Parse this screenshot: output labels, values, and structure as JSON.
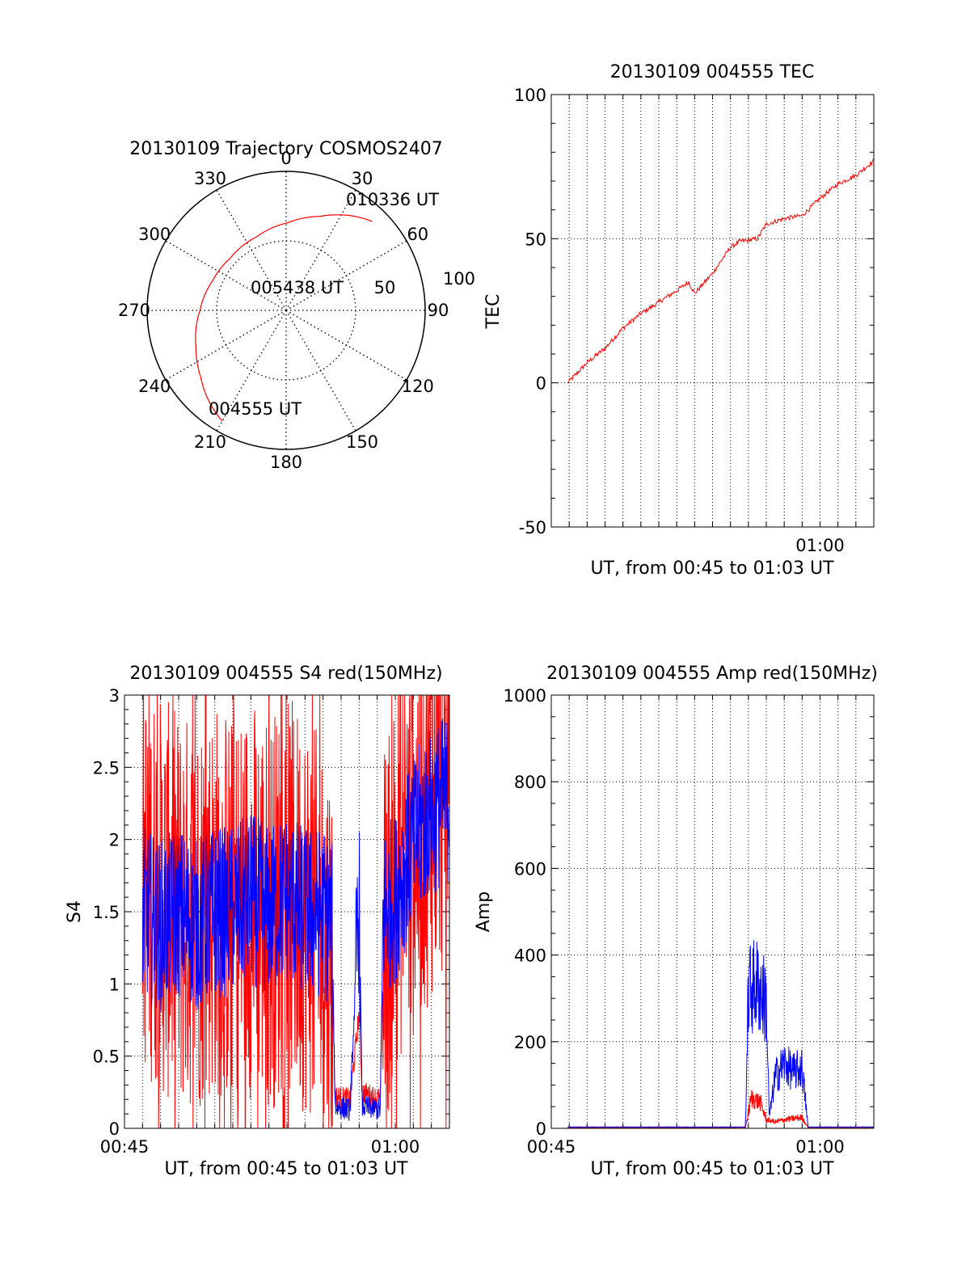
{
  "colors": {
    "red": "#ff0000",
    "blue": "#0000ff",
    "axis": "#000000",
    "grid": "#000000",
    "background": "#ffffff"
  },
  "chart_data": [
    {
      "id": "trajectory",
      "type": "polar",
      "title": "20130109 Trajectory COSMOS2407",
      "azimuth_labels": [
        "0",
        "30",
        "60",
        "90",
        "120",
        "150",
        "180",
        "210",
        "240",
        "270",
        "300",
        "330"
      ],
      "ring_labels": [
        "50",
        "100"
      ],
      "rlim": [
        0,
        100
      ],
      "grid": true,
      "track": {
        "color": "red",
        "az": [
          210,
          220,
          232,
          248,
          270,
          292,
          313,
          338,
          1,
          20,
          35,
          44
        ],
        "r": [
          92,
          86,
          78,
          70,
          62,
          57,
          55,
          57,
          63,
          72,
          83,
          89
        ]
      },
      "annotations": [
        "010336 UT",
        "005438 UT",
        "004555 UT"
      ]
    },
    {
      "id": "tec",
      "type": "line",
      "title": "20130109 004555 TEC",
      "xlabel": "UT, from 00:45 to 01:03 UT",
      "ylabel": "TEC",
      "xlim": [
        "00:45",
        "01:03"
      ],
      "ylim": [
        -50,
        100
      ],
      "yticks": [
        "-50",
        "0",
        "50",
        "100"
      ],
      "xticks": [
        "01:00"
      ],
      "grid": true,
      "series": [
        {
          "color": "red",
          "x": [
            "00:45:55",
            "00:47:00",
            "00:48:00",
            "00:49:00",
            "00:50:00",
            "00:51:00",
            "00:52:00",
            "00:52:40",
            "00:53:00",
            "00:54:00",
            "00:55:00",
            "00:55:30",
            "00:56:30",
            "00:57:00",
            "00:58:00",
            "00:59:00",
            "01:00:00",
            "01:01:00",
            "01:02:00",
            "01:03:00"
          ],
          "y": [
            0,
            7,
            12,
            19,
            24,
            28,
            32,
            35,
            31,
            38,
            47,
            49,
            50,
            55,
            57,
            58,
            64,
            69,
            72,
            77
          ]
        }
      ]
    },
    {
      "id": "s4",
      "type": "line",
      "title": "20130109 004555 S4 red(150MHz)",
      "xlabel": "UT, from 00:45 to 01:03 UT",
      "ylabel": "S4",
      "xlim": [
        "00:45",
        "01:03"
      ],
      "ylim": [
        0,
        3
      ],
      "yticks": [
        "0",
        "0.5",
        "1",
        "1.5",
        "2",
        "2.5",
        "3"
      ],
      "xticks": [
        "00:45",
        "01:00"
      ],
      "grid": true,
      "series": [
        {
          "color": "red",
          "style": "noisy",
          "x": [
            "00:46:00",
            "00:47:00",
            "00:48:00",
            "00:49:00",
            "00:50:00",
            "00:51:00",
            "00:52:00",
            "00:53:00",
            "00:54:00",
            "00:55:00",
            "00:56:00",
            "00:56:30",
            "00:56:40",
            "00:57:30",
            "00:58:00",
            "00:58:10",
            "00:59:10",
            "00:59:20",
            "01:00:00",
            "01:00:30",
            "01:01:00",
            "01:02:00",
            "01:03:00"
          ],
          "y": [
            1.8,
            1.6,
            1.5,
            1.5,
            1.6,
            1.5,
            1.6,
            1.5,
            1.6,
            1.5,
            1.3,
            1.2,
            0.22,
            0.2,
            0.8,
            0.25,
            0.2,
            1.2,
            1.8,
            1.9,
            2.0,
            2.3,
            2.5
          ]
        },
        {
          "color": "blue",
          "style": "noisy",
          "x": [
            "00:46:00",
            "00:47:00",
            "00:48:00",
            "00:49:00",
            "00:50:00",
            "00:51:00",
            "00:52:00",
            "00:53:00",
            "00:54:00",
            "00:55:00",
            "00:56:00",
            "00:56:30",
            "00:56:40",
            "00:57:30",
            "00:58:00",
            "00:58:10",
            "00:59:10",
            "00:59:20",
            "01:00:00",
            "01:00:30",
            "01:01:00",
            "01:02:00",
            "01:03:00"
          ],
          "y": [
            1.5,
            1.4,
            1.5,
            1.4,
            1.5,
            1.5,
            1.6,
            1.5,
            1.6,
            1.5,
            1.5,
            1.4,
            0.15,
            0.13,
            1.6,
            0.15,
            0.13,
            1.5,
            1.6,
            1.8,
            2.0,
            2.2,
            2.3
          ]
        }
      ]
    },
    {
      "id": "amp",
      "type": "line",
      "title": "20130109 004555 Amp red(150MHz)",
      "xlabel": "UT, from 00:45 to 01:03 UT",
      "ylabel": "Amp",
      "xlim": [
        "00:45",
        "01:03"
      ],
      "ylim": [
        0,
        1000
      ],
      "yticks": [
        "0",
        "200",
        "400",
        "600",
        "800",
        "1000"
      ],
      "xticks": [
        "00:45",
        "01:00"
      ],
      "grid": true,
      "series": [
        {
          "color": "red",
          "style": "noisy",
          "x": [
            "00:45:55",
            "00:55:50",
            "00:56:10",
            "00:56:40",
            "00:57:00",
            "00:57:30",
            "00:58:00",
            "00:59:00",
            "00:59:20",
            "01:03:00"
          ],
          "y": [
            2,
            2,
            70,
            60,
            20,
            15,
            20,
            25,
            2,
            2
          ]
        },
        {
          "color": "blue",
          "style": "noisy",
          "x": [
            "00:45:55",
            "00:55:50",
            "00:56:00",
            "00:56:30",
            "00:57:00",
            "00:57:10",
            "00:57:30",
            "00:58:00",
            "00:58:30",
            "00:59:00",
            "00:59:20",
            "01:03:00"
          ],
          "y": [
            3,
            3,
            320,
            330,
            290,
            25,
            120,
            150,
            130,
            140,
            3,
            3
          ]
        }
      ]
    }
  ]
}
